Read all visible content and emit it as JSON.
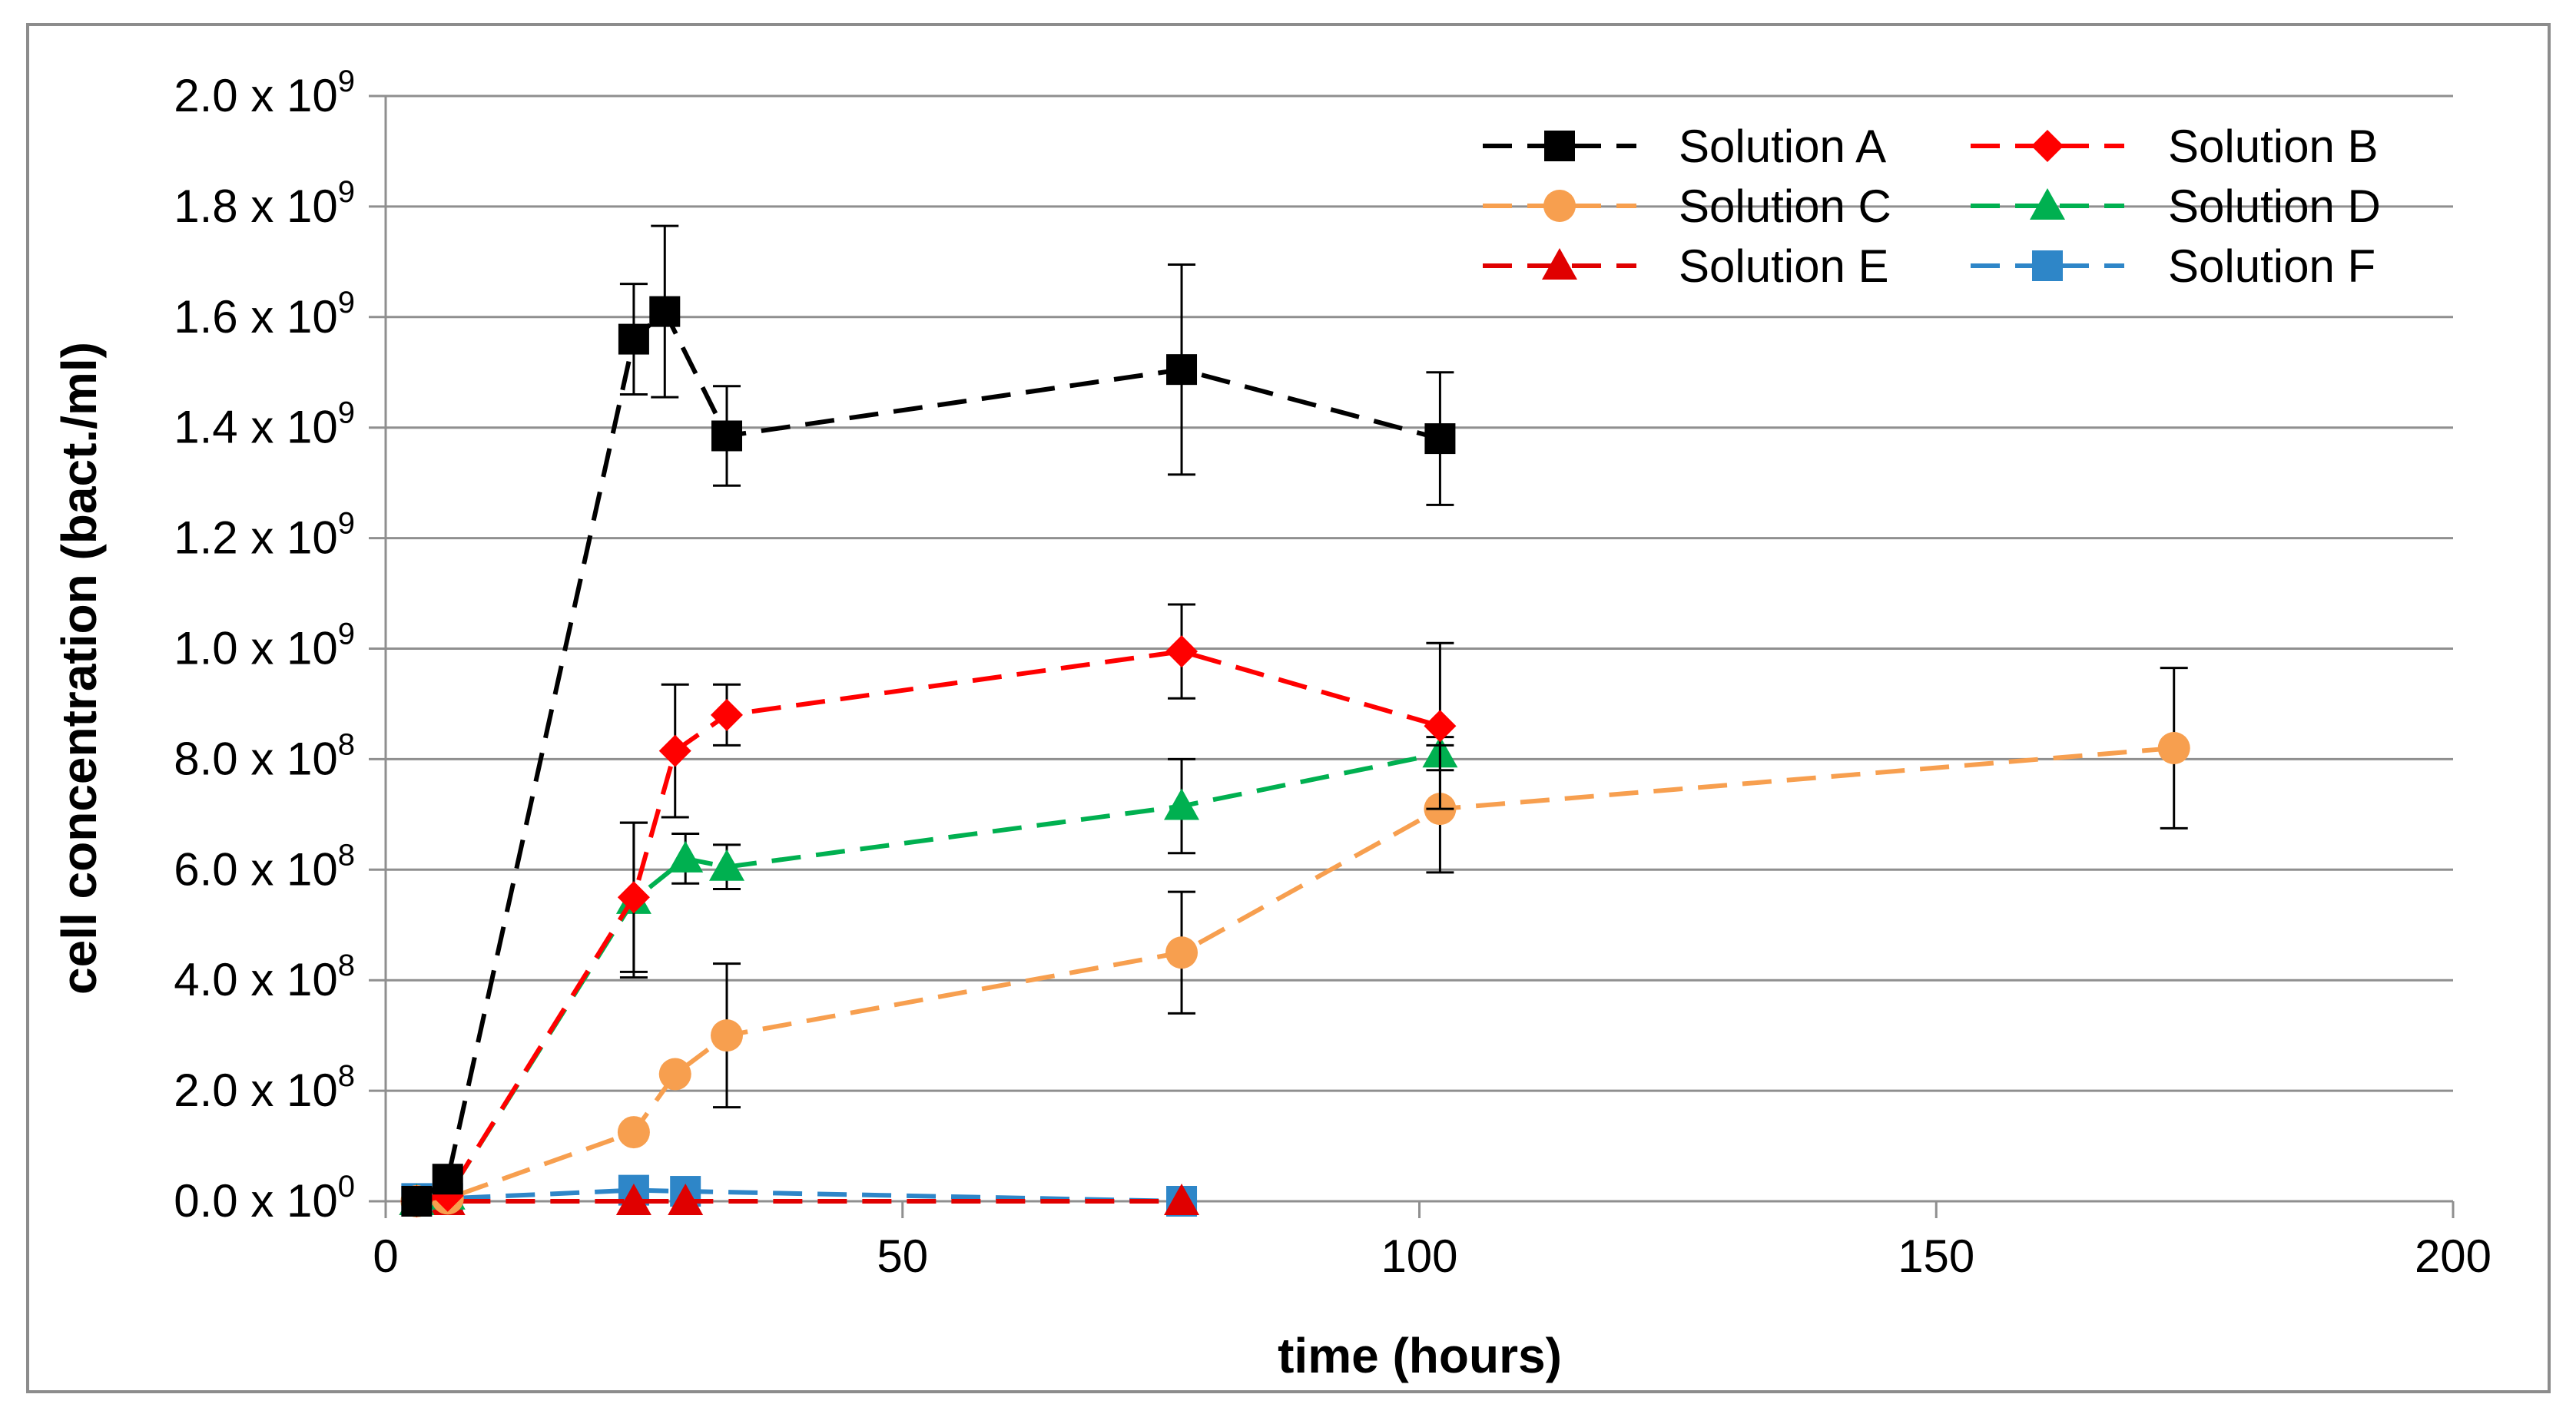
{
  "chart_data": {
    "type": "line",
    "title": "",
    "xlabel": "time (hours)",
    "ylabel": "cell concentration (bact./ml)",
    "xlim": [
      0,
      200
    ],
    "ylim": [
      0,
      2000000000
    ],
    "x_ticks": [
      "0",
      "50",
      "100",
      "150",
      "200"
    ],
    "y_ticks": [
      {
        "mant": "0.0 x 10",
        "exp": "0"
      },
      {
        "mant": "2.0 x 10",
        "exp": "8"
      },
      {
        "mant": "4.0 x 10",
        "exp": "8"
      },
      {
        "mant": "6.0 x 10",
        "exp": "8"
      },
      {
        "mant": "8.0 x 10",
        "exp": "8"
      },
      {
        "mant": "1.0 x 10",
        "exp": "9"
      },
      {
        "mant": "1.2 x 10",
        "exp": "9"
      },
      {
        "mant": "1.4 x 10",
        "exp": "9"
      },
      {
        "mant": "1.6 x 10",
        "exp": "9"
      },
      {
        "mant": "1.8 x 10",
        "exp": "9"
      },
      {
        "mant": "2.0 x 10",
        "exp": "9"
      }
    ],
    "grid": true,
    "legend_position": "top-right",
    "series": [
      {
        "name": "Solution A",
        "color": "#000000",
        "marker": "square",
        "x": [
          3,
          6,
          24,
          27,
          33,
          77,
          102
        ],
        "y": [
          0,
          40000000,
          1560000000,
          1610000000,
          1385000000,
          1505000000,
          1380000000
        ],
        "err": [
          0,
          0,
          100000000,
          155000000,
          90000000,
          190000000,
          120000000
        ]
      },
      {
        "name": "Solution B",
        "color": "#ff0000",
        "marker": "diamond",
        "x": [
          3,
          6,
          24,
          28,
          33,
          77,
          102
        ],
        "y": [
          0,
          10000000,
          550000000,
          815000000,
          880000000,
          995000000,
          860000000
        ],
        "err": [
          0,
          0,
          135000000,
          120000000,
          55000000,
          85000000,
          150000000
        ]
      },
      {
        "name": "Solution C",
        "color": "#f79f4f",
        "marker": "circle",
        "x": [
          3,
          6,
          24,
          28,
          33,
          77,
          102,
          173
        ],
        "y": [
          0,
          5000000,
          125000000,
          230000000,
          300000000,
          450000000,
          710000000,
          820000000
        ],
        "err": [
          0,
          0,
          0,
          0,
          130000000,
          110000000,
          115000000,
          145000000
        ]
      },
      {
        "name": "Solution D",
        "color": "#00b050",
        "marker": "triangle",
        "x": [
          3,
          6,
          24,
          29,
          33,
          77,
          102
        ],
        "y": [
          0,
          10000000,
          545000000,
          620000000,
          605000000,
          715000000,
          810000000
        ],
        "err": [
          0,
          0,
          140000000,
          45000000,
          40000000,
          85000000,
          30000000
        ]
      },
      {
        "name": "Solution E",
        "color": "#e00000",
        "marker": "triangle",
        "x": [
          3,
          6,
          24,
          29,
          77
        ],
        "y": [
          0,
          0,
          0,
          0,
          0
        ],
        "err": [
          0,
          0,
          0,
          0,
          0
        ]
      },
      {
        "name": "Solution F",
        "color": "#2e86c8",
        "marker": "square",
        "x": [
          3,
          6,
          24,
          29,
          77
        ],
        "y": [
          5000000,
          5000000,
          20000000,
          18000000,
          0
        ],
        "err": [
          0,
          0,
          0,
          0,
          0
        ]
      }
    ]
  }
}
